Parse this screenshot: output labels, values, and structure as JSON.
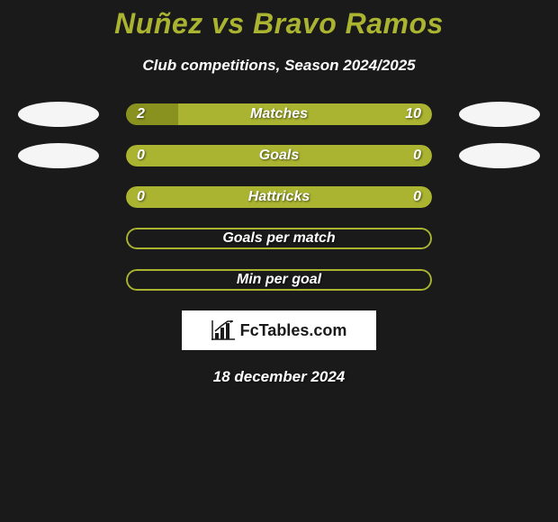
{
  "title": "Nuñez vs Bravo Ramos",
  "subtitle": "Club competitions, Season 2024/2025",
  "colors": {
    "background": "#1a1a1a",
    "accent": "#aab431",
    "accent_dark": "#8a921f",
    "ellipse": "#f5f5f5",
    "text_light": "#ffffff"
  },
  "stats": [
    {
      "label": "Matches",
      "left_value": "2",
      "right_value": "10",
      "left_pct": 17,
      "right_pct": 83,
      "show_ellipses": true,
      "fill_left_color": "#8a921f",
      "bg_color": "#aab431"
    },
    {
      "label": "Goals",
      "left_value": "0",
      "right_value": "0",
      "left_pct": 0,
      "right_pct": 0,
      "show_ellipses": true,
      "fill_left_color": "#8a921f",
      "bg_color": "#aab431"
    },
    {
      "label": "Hattricks",
      "left_value": "0",
      "right_value": "0",
      "left_pct": 0,
      "right_pct": 0,
      "show_ellipses": false,
      "fill_left_color": "#8a921f",
      "bg_color": "#aab431"
    },
    {
      "label": "Goals per match",
      "left_value": "",
      "right_value": "",
      "left_pct": 0,
      "right_pct": 0,
      "show_ellipses": false,
      "outline_only": true,
      "outline_color": "#aab431"
    },
    {
      "label": "Min per goal",
      "left_value": "",
      "right_value": "",
      "left_pct": 0,
      "right_pct": 0,
      "show_ellipses": false,
      "outline_only": true,
      "outline_color": "#aab431"
    }
  ],
  "logo_text": "FcTables.com",
  "date": "18 december 2024"
}
